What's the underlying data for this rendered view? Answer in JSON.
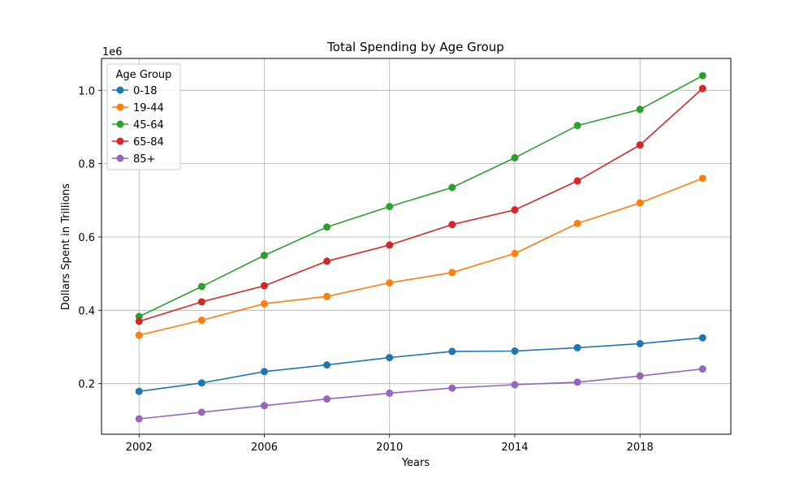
{
  "chart_data": {
    "type": "line",
    "title": "Total Spending by Age Group",
    "xlabel": "Years",
    "ylabel": "Dollars Spent in Trillions",
    "y_offset_label": "1e6",
    "x": [
      2002,
      2004,
      2006,
      2008,
      2010,
      2012,
      2014,
      2016,
      2018,
      2020
    ],
    "xlim": [
      2000.8,
      2020.9
    ],
    "ylim": [
      0.062,
      1.087
    ],
    "x_ticks": [
      2002,
      2006,
      2010,
      2014,
      2018
    ],
    "y_ticks": [
      0.2,
      0.4,
      0.6,
      0.8,
      1.0
    ],
    "y_tick_labels": [
      "0.2",
      "0.4",
      "0.6",
      "0.8",
      "1.0"
    ],
    "grid": true,
    "marker": "circle",
    "legend": {
      "title": "Age Group",
      "placement": "top-left"
    },
    "series": [
      {
        "name": "0-18",
        "color": "#1f77b4",
        "values": [
          0.179,
          0.202,
          0.233,
          0.251,
          0.271,
          0.288,
          0.289,
          0.298,
          0.309,
          0.325
        ]
      },
      {
        "name": "19-44",
        "color": "#ff7f0e",
        "values": [
          0.332,
          0.373,
          0.418,
          0.438,
          0.475,
          0.503,
          0.555,
          0.637,
          0.693,
          0.76
        ]
      },
      {
        "name": "45-64",
        "color": "#2ca02c",
        "values": [
          0.383,
          0.465,
          0.55,
          0.627,
          0.683,
          0.735,
          0.816,
          0.904,
          0.948,
          1.04
        ]
      },
      {
        "name": "65-84",
        "color": "#d62728",
        "values": [
          0.37,
          0.423,
          0.467,
          0.534,
          0.578,
          0.634,
          0.674,
          0.753,
          0.851,
          1.005
        ]
      },
      {
        "name": "85+",
        "color": "#9467bd",
        "values": [
          0.104,
          0.122,
          0.14,
          0.158,
          0.174,
          0.188,
          0.197,
          0.204,
          0.221,
          0.24
        ]
      }
    ]
  }
}
